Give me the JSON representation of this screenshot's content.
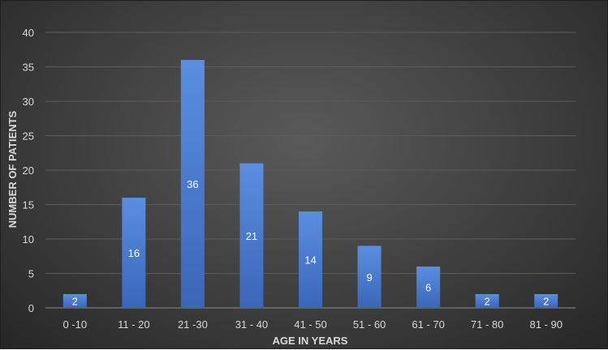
{
  "chart_data": {
    "type": "bar",
    "title": "",
    "xlabel": "AGE IN YEARS",
    "ylabel": "NUMBER OF PATIENTS",
    "categories": [
      "0 -10",
      "11 - 20",
      "21 -30",
      "31 - 40",
      "41 - 50",
      "51 - 60",
      "61 - 70",
      "71 - 80",
      "81 - 90"
    ],
    "values": [
      2,
      16,
      36,
      21,
      14,
      9,
      6,
      2,
      2
    ],
    "ylim": [
      0,
      40
    ],
    "yticks": [
      0,
      5,
      10,
      15,
      20,
      25,
      30,
      35,
      40
    ],
    "grid": true,
    "data_labels": true,
    "colors": {
      "bar": "#4472c4",
      "bar_light": "#5b8ee0",
      "grid": "#5c5c5c",
      "axis": "#8c8c8c",
      "text": "#d9d9d9"
    }
  }
}
